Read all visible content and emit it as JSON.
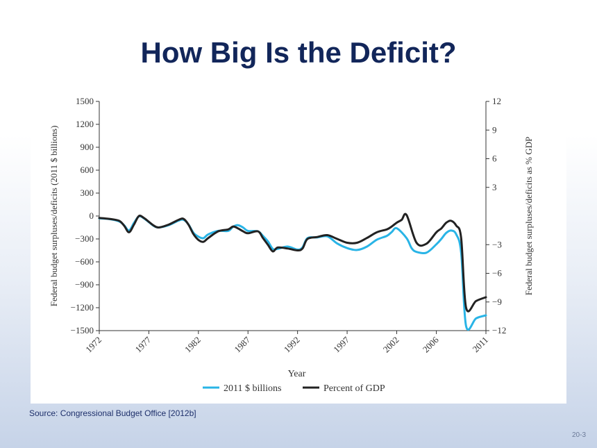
{
  "slide": {
    "title": "How Big Is the Deficit?",
    "source": "Source:  Congressional Budget Office [2012b]",
    "page_number": "20-3"
  },
  "colors": {
    "title": "#12265a",
    "billions_series": "#29b4e6",
    "gdp_series": "#222222",
    "axis": "#333333"
  },
  "chart_data": {
    "type": "line",
    "xlabel": "Year",
    "ylabel_left": "Federal budget surpluses/deficits (2011 $ billions)",
    "ylabel_right": "Federal budget surpluses/deficits as % GDP",
    "xlim": [
      1972,
      2011
    ],
    "ylim_left": [
      -1500,
      1500
    ],
    "ylim_right": [
      -12,
      12
    ],
    "x_ticks": [
      1972,
      1977,
      1982,
      1987,
      1992,
      1997,
      2002,
      2006,
      2011
    ],
    "y_ticks_left": [
      1500,
      1200,
      900,
      600,
      300,
      0,
      -300,
      -600,
      -900,
      -1200,
      -1500
    ],
    "y_ticks_left_labels": [
      "1500",
      "1200",
      "900",
      "600",
      "300",
      "0",
      "−300",
      "−600",
      "−900",
      "−1200",
      "−1500"
    ],
    "y_ticks_right": [
      12,
      9,
      6,
      3,
      -3,
      -6,
      -9,
      -12
    ],
    "y_ticks_right_labels": [
      "12",
      "9",
      "6",
      "3",
      "−3",
      "−6",
      "−9",
      "−12"
    ],
    "grid": false,
    "legend_position": "bottom-center",
    "series": [
      {
        "name": "2011 $ billions",
        "axis": "left",
        "x": [
          1972,
          1973,
          1974,
          1974.5,
          1975,
          1975.5,
          1976,
          1976.5,
          1977,
          1977.5,
          1978,
          1979,
          1980,
          1980.5,
          1981,
          1981.5,
          1982,
          1982.5,
          1983,
          1984,
          1985,
          1985.5,
          1986,
          1986.5,
          1987,
          1988,
          1988.5,
          1989,
          1989.5,
          1990,
          1991,
          1992,
          1992.5,
          1993,
          1994,
          1995,
          1996,
          1997,
          1998,
          1999,
          2000,
          2001,
          2001.5,
          2002,
          2003,
          2003.5,
          2004,
          2005,
          2006,
          2006.5,
          2007,
          2007.5,
          2008,
          2008.5,
          2009,
          2010,
          2011
        ],
        "y": [
          -30,
          -40,
          -70,
          -120,
          -190,
          -90,
          -5,
          -30,
          -80,
          -130,
          -150,
          -120,
          -60,
          -50,
          -110,
          -220,
          -270,
          -290,
          -240,
          -195,
          -195,
          -140,
          -120,
          -150,
          -195,
          -200,
          -260,
          -330,
          -430,
          -430,
          -400,
          -440,
          -410,
          -290,
          -280,
          -265,
          -360,
          -420,
          -445,
          -400,
          -310,
          -260,
          -210,
          -160,
          -290,
          -420,
          -470,
          -480,
          -370,
          -300,
          -220,
          -190,
          -240,
          -480,
          -1440,
          -1340,
          -1300
        ]
      },
      {
        "name": "Percent of GDP",
        "axis": "right",
        "x": [
          1972,
          1973,
          1974,
          1974.5,
          1975,
          1975.5,
          1976,
          1976.5,
          1977,
          1977.5,
          1978,
          1979,
          1980,
          1980.5,
          1981,
          1981.5,
          1982,
          1982.5,
          1983,
          1984,
          1985,
          1985.5,
          1986,
          1986.5,
          1987,
          1988,
          1988.5,
          1989,
          1989.5,
          1990,
          1991,
          1992,
          1992.5,
          1993,
          1994,
          1995,
          1996,
          1997,
          1998,
          1999,
          2000,
          2001,
          2001.5,
          2002,
          2002.5,
          2003,
          2004,
          2005,
          2006,
          2006.5,
          2007,
          2007.5,
          2008,
          2008.5,
          2009,
          2010,
          2011
        ],
        "y": [
          -0.2,
          -0.3,
          -0.5,
          -1.0,
          -1.7,
          -0.9,
          0.0,
          -0.2,
          -0.6,
          -1.0,
          -1.2,
          -0.9,
          -0.4,
          -0.3,
          -0.9,
          -1.9,
          -2.5,
          -2.7,
          -2.3,
          -1.6,
          -1.4,
          -1.1,
          -1.3,
          -1.6,
          -1.8,
          -1.6,
          -2.3,
          -3.0,
          -3.7,
          -3.3,
          -3.4,
          -3.6,
          -3.4,
          -2.4,
          -2.2,
          -2.0,
          -2.4,
          -2.8,
          -2.8,
          -2.3,
          -1.7,
          -1.4,
          -1.1,
          -0.7,
          -0.4,
          0.1,
          -2.8,
          -2.9,
          -1.7,
          -1.3,
          -0.7,
          -0.5,
          -1.0,
          -2.3,
          -9.6,
          -8.9,
          -8.5
        ]
      }
    ]
  }
}
